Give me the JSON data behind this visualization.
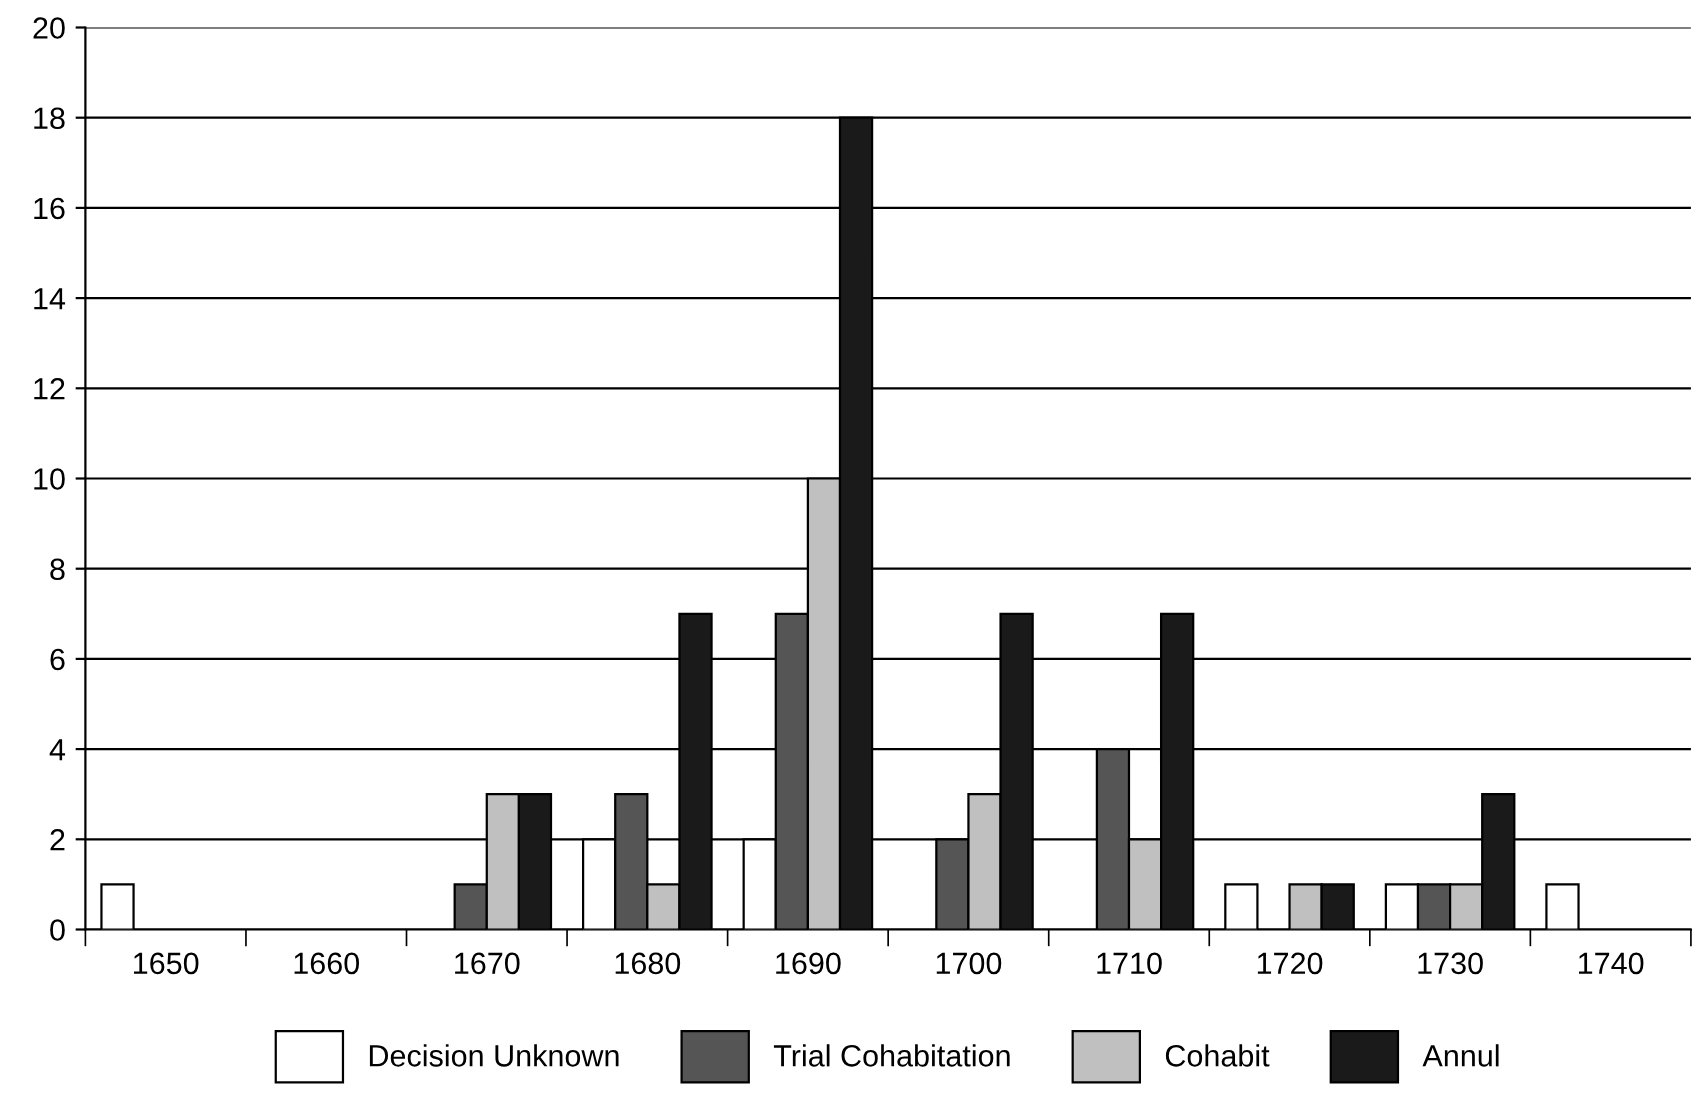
{
  "chart_data": {
    "type": "bar",
    "categories": [
      "1650",
      "1660",
      "1670",
      "1680",
      "1690",
      "1700",
      "1710",
      "1720",
      "1730",
      "1740"
    ],
    "series": [
      {
        "name": "Decision Unknown",
        "color": "#ffffff",
        "values": [
          1,
          0,
          0,
          2,
          2,
          0,
          0,
          1,
          1,
          1
        ]
      },
      {
        "name": "Trial Cohabitation",
        "color": "#555555",
        "values": [
          0,
          0,
          1,
          3,
          7,
          2,
          4,
          0,
          1,
          0
        ]
      },
      {
        "name": "Cohabit",
        "color": "#c0c0c0",
        "values": [
          0,
          0,
          3,
          1,
          10,
          3,
          2,
          1,
          1,
          0
        ]
      },
      {
        "name": "Annul",
        "color": "#1a1a1a",
        "values": [
          0,
          0,
          3,
          7,
          18,
          7,
          7,
          1,
          3,
          0
        ]
      }
    ],
    "ylim": [
      0,
      20
    ],
    "yticks": [
      0,
      2,
      4,
      6,
      8,
      10,
      12,
      14,
      16,
      18,
      20
    ],
    "grid": "y",
    "legend": "bottom"
  }
}
